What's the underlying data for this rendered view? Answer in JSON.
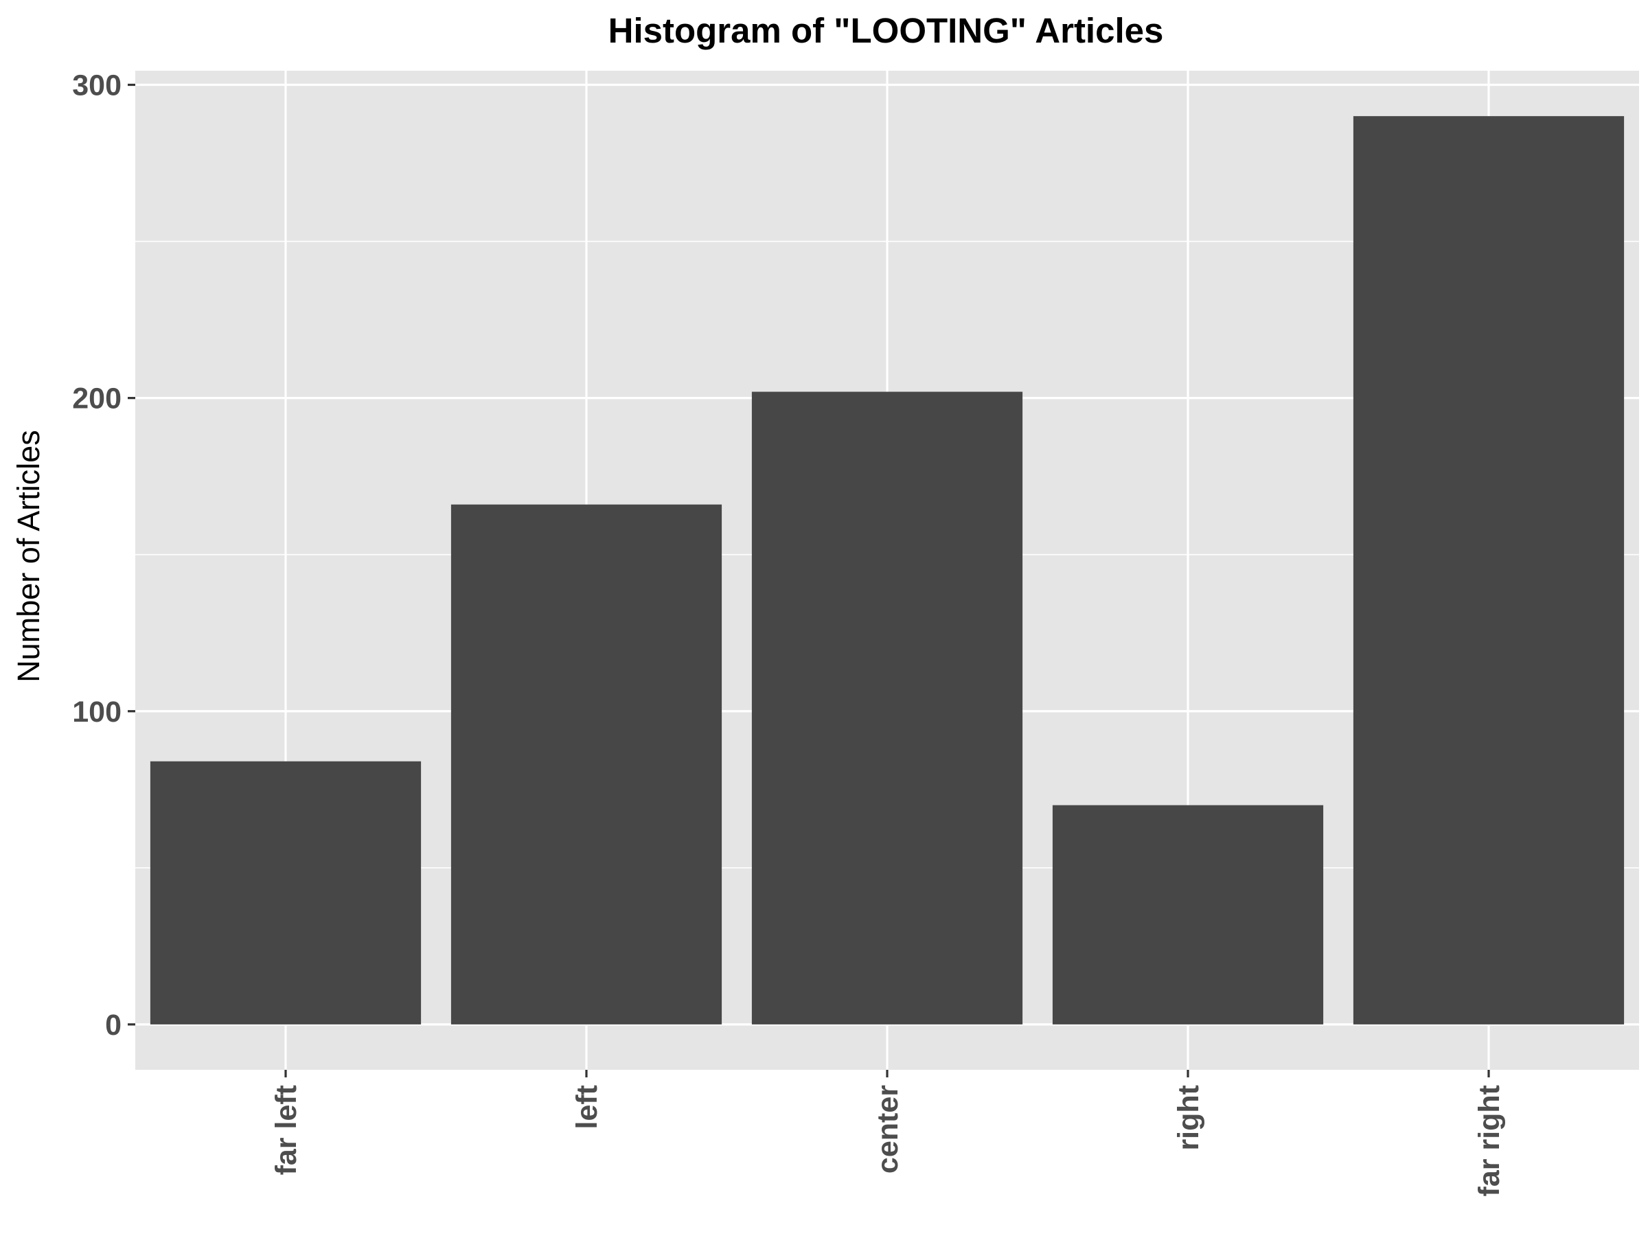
{
  "chart_data": {
    "type": "bar",
    "title": "Histogram of \"LOOTING\" Articles",
    "xlabel": "",
    "ylabel": "Number of Articles",
    "categories": [
      "far left",
      "left",
      "center",
      "right",
      "far right"
    ],
    "values": [
      84,
      166,
      202,
      70,
      290
    ],
    "ylim": [
      -14.5,
      304.5
    ],
    "yticks": [
      0,
      100,
      200,
      300
    ],
    "ytick_labels": [
      "0",
      "100",
      "200",
      "300"
    ],
    "grid": true,
    "legend": "none",
    "colors": {
      "panel": "#e5e5e5",
      "grid": "#ffffff",
      "bar": "#474747",
      "tick_text": "#4d4d4d",
      "tick_mark": "#333333",
      "title_text": "#000000"
    }
  }
}
